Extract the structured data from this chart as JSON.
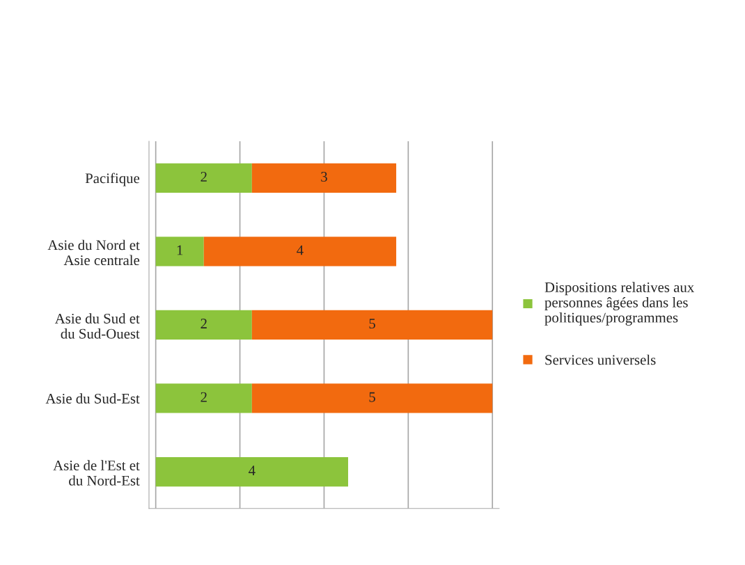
{
  "chart_data": {
    "type": "bar",
    "orientation": "horizontal",
    "stacked": true,
    "grid": "x",
    "legend": "right",
    "data_labels": true,
    "categories": [
      "Pacifique",
      "Asie du Nord et\nAsie centrale",
      "Asie du Sud et\ndu Sud-Ouest",
      "Asie du Sud-Est",
      "Asie de l'Est et\ndu Nord-Est"
    ],
    "series": [
      {
        "name": "Dispositions relatives aux\npersonnes âgées dans les\npolitiques/programmes",
        "color": "#8cc43c",
        "values": [
          2,
          1,
          2,
          2,
          4
        ]
      },
      {
        "name": "Services universels",
        "color": "#f26a0f",
        "values": [
          3,
          4,
          5,
          5,
          null
        ]
      }
    ]
  }
}
